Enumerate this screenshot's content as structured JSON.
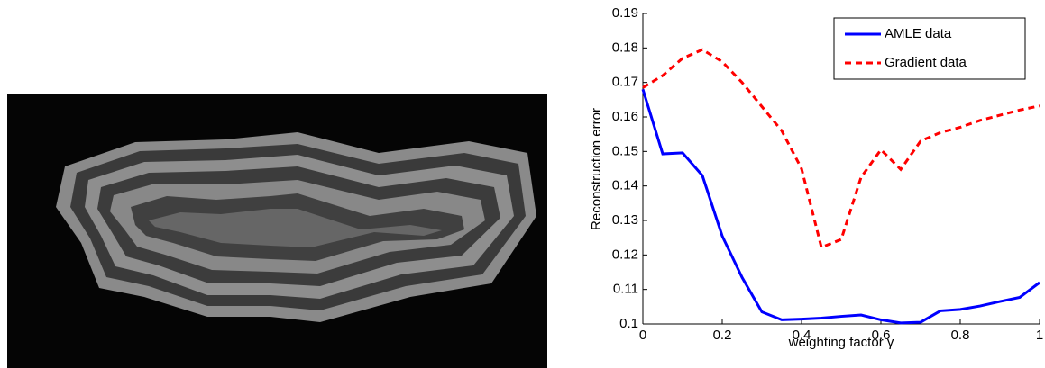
{
  "chart_data": {
    "type": "line",
    "xlabel": "weighting factor γ",
    "ylabel": "Reconstruction error",
    "x": [
      0,
      0.05,
      0.1,
      0.15,
      0.2,
      0.25,
      0.3,
      0.35,
      0.4,
      0.45,
      0.5,
      0.55,
      0.6,
      0.65,
      0.7,
      0.75,
      0.8,
      0.85,
      0.9,
      0.95,
      1
    ],
    "series": [
      {
        "name": "AMLE data",
        "color": "#0000ff",
        "style": "solid",
        "values": [
          0.168,
          0.1493,
          0.1496,
          0.143,
          0.1255,
          0.1135,
          0.1035,
          0.1012,
          0.1014,
          0.1017,
          0.1022,
          0.1026,
          0.1012,
          0.1003,
          0.1005,
          0.1038,
          0.1042,
          0.1052,
          0.1065,
          0.1077,
          0.112
        ]
      },
      {
        "name": "Gradient data",
        "color": "#ff0000",
        "style": "dashed",
        "values": [
          0.1685,
          0.172,
          0.177,
          0.1795,
          0.176,
          0.17,
          0.163,
          0.156,
          0.145,
          0.1222,
          0.1245,
          0.1425,
          0.1505,
          0.1448,
          0.153,
          0.1555,
          0.157,
          0.159,
          0.1605,
          0.162,
          0.1632
        ]
      }
    ],
    "xlim": [
      0,
      1
    ],
    "xticks": [
      0,
      0.2,
      0.4,
      0.6,
      0.8,
      1
    ],
    "ylim": [
      0.1,
      0.19
    ],
    "yticks": [
      0.1,
      0.11,
      0.12,
      0.13,
      0.14,
      0.15,
      0.16,
      0.17,
      0.18,
      0.19
    ],
    "legend": "upper right"
  }
}
